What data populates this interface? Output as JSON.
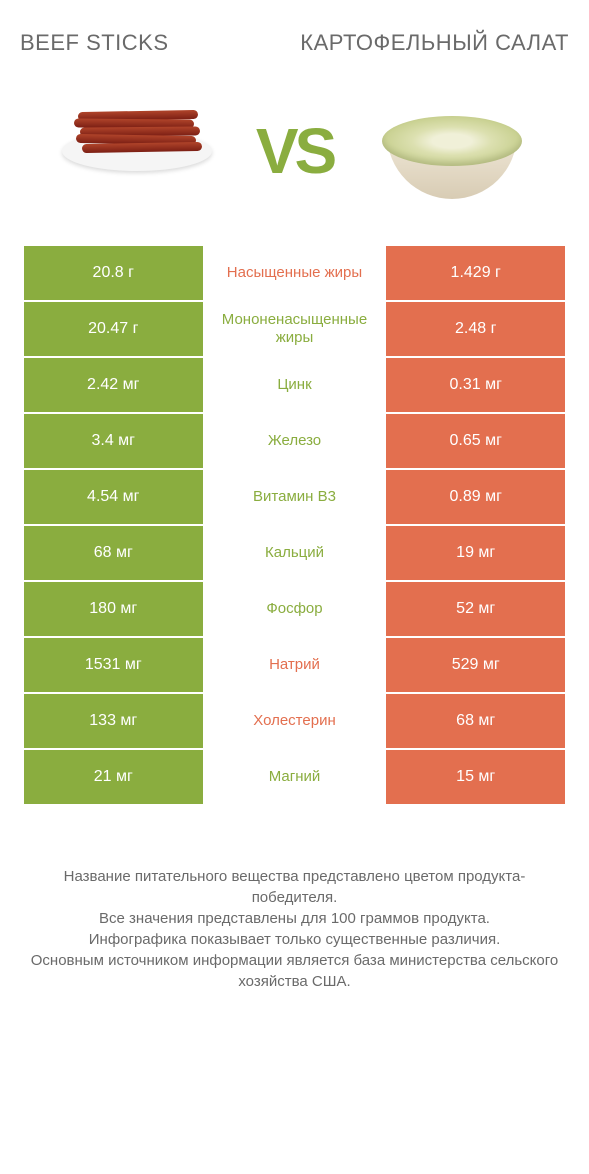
{
  "header": {
    "titleLeft": "Beef sticks",
    "titleRight": "Картофельный салат"
  },
  "vsText": "VS",
  "colors": {
    "leftBg": "#8aad3f",
    "rightBg": "#e36f4f",
    "textGray": "#6a6a6a",
    "white": "#ffffff"
  },
  "rows": [
    {
      "left": "20.8 г",
      "label": "Насыщенные жиры",
      "winner": "orange",
      "right": "1.429 г"
    },
    {
      "left": "20.47 г",
      "label": "Мононенасыщенные жиры",
      "winner": "green",
      "right": "2.48 г"
    },
    {
      "left": "2.42 мг",
      "label": "Цинк",
      "winner": "green",
      "right": "0.31 мг"
    },
    {
      "left": "3.4 мг",
      "label": "Железо",
      "winner": "green",
      "right": "0.65 мг"
    },
    {
      "left": "4.54 мг",
      "label": "Витамин B3",
      "winner": "green",
      "right": "0.89 мг"
    },
    {
      "left": "68 мг",
      "label": "Кальций",
      "winner": "green",
      "right": "19 мг"
    },
    {
      "left": "180 мг",
      "label": "Фосфор",
      "winner": "green",
      "right": "52 мг"
    },
    {
      "left": "1531 мг",
      "label": "Натрий",
      "winner": "orange",
      "right": "529 мг"
    },
    {
      "left": "133 мг",
      "label": "Холестерин",
      "winner": "orange",
      "right": "68 мг"
    },
    {
      "left": "21 мг",
      "label": "Магний",
      "winner": "green",
      "right": "15 мг"
    }
  ],
  "footer": {
    "line1": "Название питательного вещества представлено цветом продукта-победителя.",
    "line2": "Все значения представлены для 100 граммов продукта.",
    "line3": "Инфографика показывает только существенные различия.",
    "line4": "Основным источником информации является база министерства сельского хозяйства США."
  }
}
